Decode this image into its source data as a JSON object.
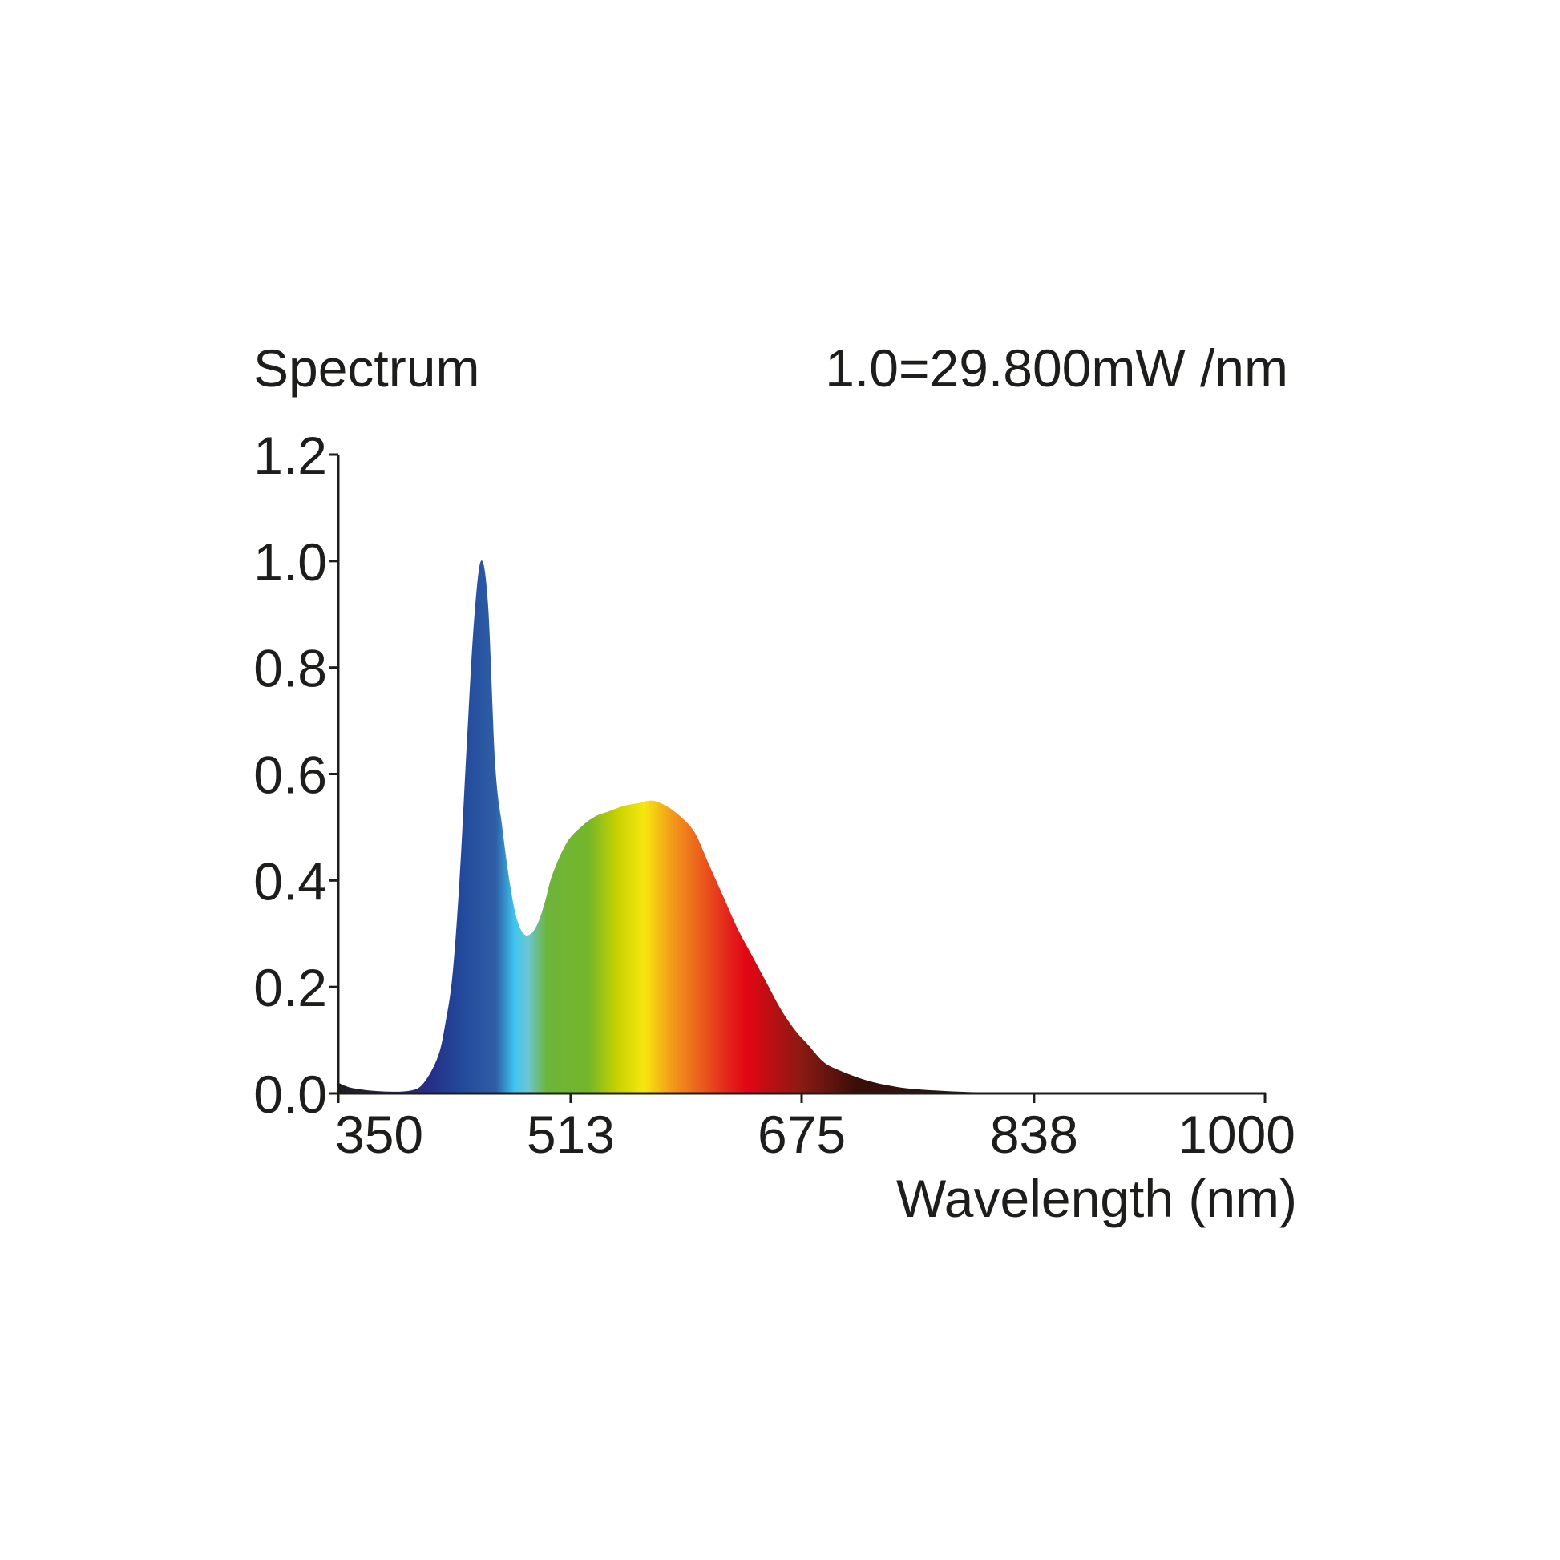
{
  "chart_data": {
    "type": "area",
    "title": "Spectrum",
    "annotation": "1.0=29.800mW /nm",
    "xlabel": "Wavelength (nm)",
    "ylabel": "",
    "xlim": [
      350,
      1000
    ],
    "ylim": [
      0,
      1.2
    ],
    "xticks": [
      "350",
      "513",
      "675",
      "838",
      "1000"
    ],
    "yticks": [
      "0.0",
      "0.2",
      "0.4",
      "0.6",
      "0.8",
      "1.0",
      "1.2"
    ],
    "grid": false,
    "fill": "visible-spectrum gradient",
    "x": [
      350,
      360,
      380,
      400,
      410,
      420,
      425,
      430,
      435,
      440,
      445,
      450,
      455,
      460,
      465,
      470,
      475,
      480,
      485,
      490,
      495,
      500,
      510,
      520,
      530,
      540,
      550,
      560,
      570,
      580,
      590,
      600,
      610,
      620,
      630,
      640,
      650,
      660,
      670,
      680,
      690,
      700,
      720,
      740,
      760,
      800,
      850,
      1000
    ],
    "y": [
      0.02,
      0.01,
      0.004,
      0.005,
      0.02,
      0.07,
      0.13,
      0.22,
      0.4,
      0.65,
      0.88,
      1.0,
      0.92,
      0.62,
      0.5,
      0.4,
      0.33,
      0.3,
      0.3,
      0.32,
      0.36,
      0.41,
      0.47,
      0.5,
      0.52,
      0.53,
      0.54,
      0.545,
      0.55,
      0.54,
      0.52,
      0.49,
      0.43,
      0.37,
      0.31,
      0.26,
      0.21,
      0.16,
      0.12,
      0.09,
      0.06,
      0.045,
      0.025,
      0.013,
      0.007,
      0.002,
      0.0005,
      0
    ]
  }
}
